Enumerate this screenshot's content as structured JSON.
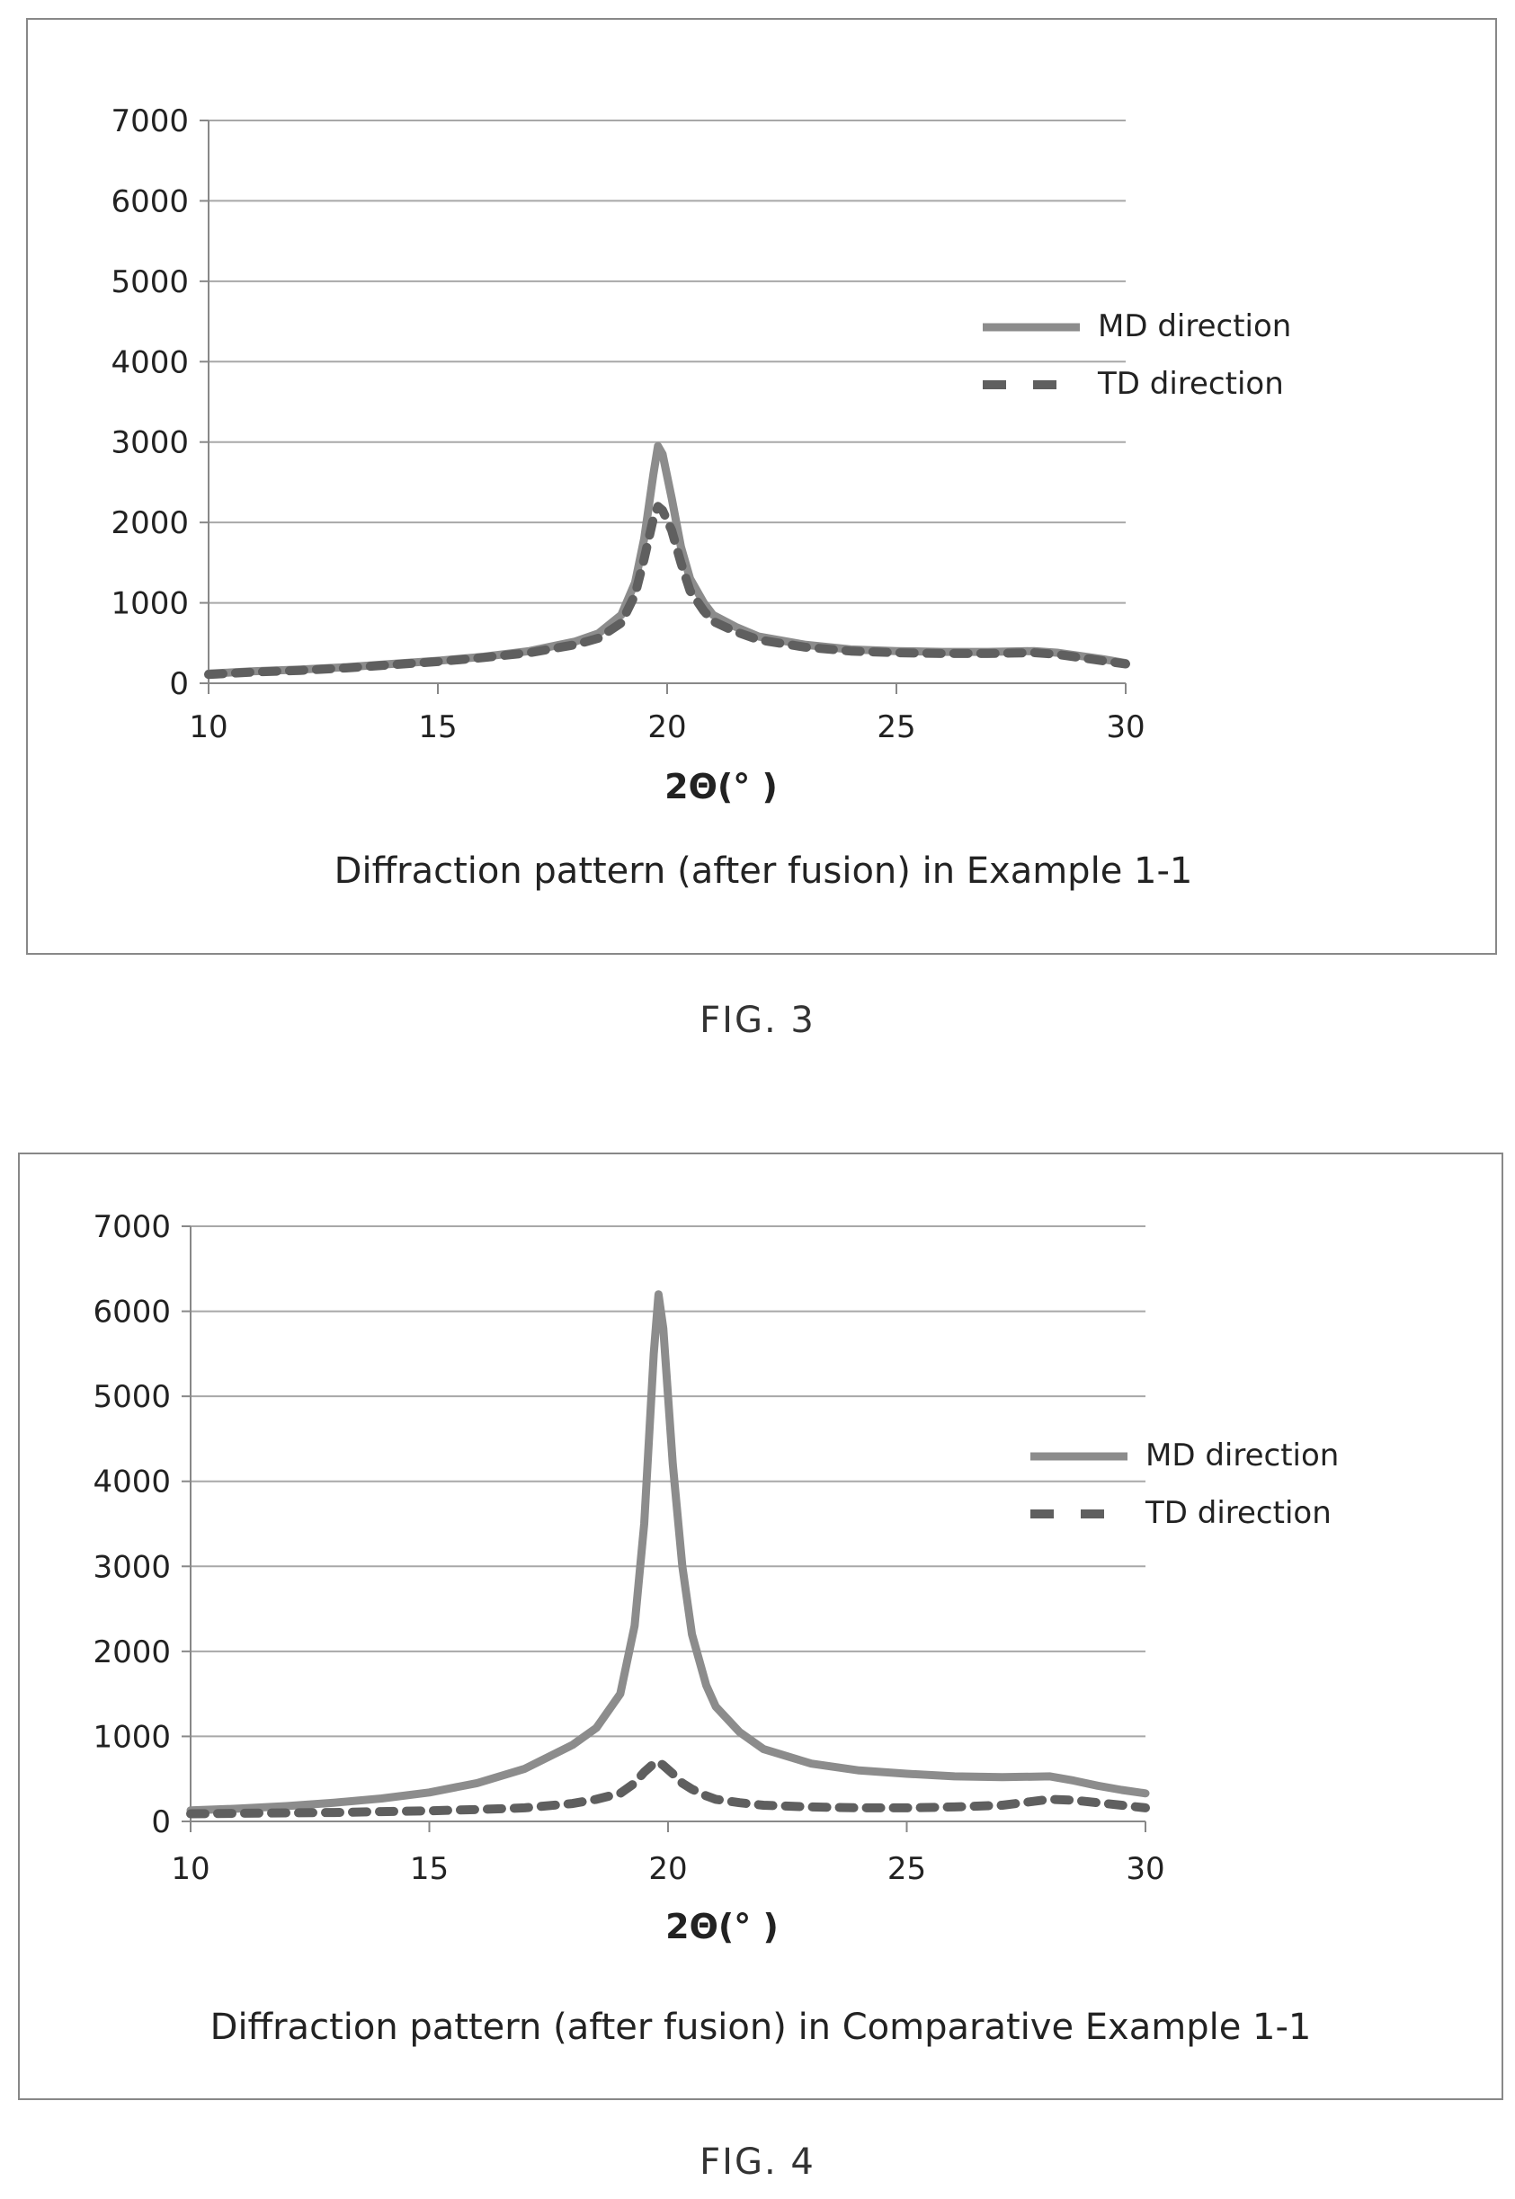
{
  "figures": [
    {
      "figure_label": "FIG. 3",
      "caption": "Diffraction pattern (after fusion) in Example 1-1"
    },
    {
      "figure_label": "FIG. 4",
      "caption": "Diffraction pattern (after fusion) in Comparative Example 1-1"
    }
  ],
  "colors": {
    "md": "#8c8c8c",
    "td": "#5f5f5f",
    "grid": "#a8a8a8",
    "axis": "#888888"
  },
  "chart_data": [
    {
      "type": "line",
      "title": "Diffraction pattern (after fusion) in Example 1-1",
      "xlabel": "2Θ(°  )",
      "ylabel": "",
      "xlim": [
        10,
        30
      ],
      "ylim": [
        0,
        7000
      ],
      "xticks": [
        10,
        15,
        20,
        25,
        30
      ],
      "yticks": [
        0,
        1000,
        2000,
        3000,
        4000,
        5000,
        6000,
        7000
      ],
      "grid": "horizontal",
      "legend": "right",
      "series": [
        {
          "name": "MD direction",
          "style": "solid",
          "x": [
            10,
            11,
            12,
            13,
            14,
            15,
            16,
            17,
            18,
            18.5,
            19,
            19.3,
            19.5,
            19.7,
            19.8,
            19.9,
            20.1,
            20.3,
            20.5,
            20.8,
            21,
            21.5,
            22,
            23,
            24,
            25,
            26,
            27,
            28,
            28.5,
            29,
            29.5,
            30
          ],
          "y": [
            120,
            150,
            170,
            200,
            240,
            280,
            330,
            400,
            520,
            620,
            850,
            1250,
            1800,
            2600,
            2950,
            2850,
            2300,
            1700,
            1300,
            1000,
            850,
            700,
            580,
            480,
            420,
            400,
            390,
            390,
            400,
            380,
            340,
            300,
            250
          ]
        },
        {
          "name": "TD direction",
          "style": "dashed",
          "x": [
            10,
            11,
            12,
            13,
            14,
            15,
            16,
            17,
            18,
            18.5,
            19,
            19.3,
            19.5,
            19.7,
            19.8,
            19.9,
            20.1,
            20.3,
            20.5,
            20.8,
            21,
            21.5,
            22,
            23,
            24,
            25,
            26,
            27,
            28,
            28.5,
            29,
            29.5,
            30
          ],
          "y": [
            110,
            140,
            160,
            190,
            230,
            270,
            320,
            380,
            480,
            560,
            750,
            1100,
            1550,
            2050,
            2200,
            2150,
            1900,
            1500,
            1150,
            900,
            770,
            640,
            540,
            450,
            400,
            380,
            370,
            370,
            380,
            360,
            320,
            280,
            240
          ]
        }
      ]
    },
    {
      "type": "line",
      "title": "Diffraction pattern (after fusion) in Comparative Example 1-1",
      "xlabel": "2Θ(°  )",
      "ylabel": "",
      "xlim": [
        10,
        30
      ],
      "ylim": [
        0,
        7000
      ],
      "xticks": [
        10,
        15,
        20,
        25,
        30
      ],
      "yticks": [
        0,
        1000,
        2000,
        3000,
        4000,
        5000,
        6000,
        7000
      ],
      "grid": "horizontal",
      "legend": "right",
      "series": [
        {
          "name": "MD direction",
          "style": "solid",
          "x": [
            10,
            11,
            12,
            13,
            14,
            15,
            16,
            17,
            18,
            18.5,
            19,
            19.3,
            19.5,
            19.7,
            19.8,
            19.9,
            20.1,
            20.3,
            20.5,
            20.8,
            21,
            21.5,
            22,
            23,
            24,
            25,
            26,
            27,
            28,
            28.5,
            29,
            29.5,
            30
          ],
          "y": [
            130,
            150,
            180,
            220,
            270,
            340,
            450,
            620,
            900,
            1100,
            1500,
            2300,
            3500,
            5500,
            6200,
            5800,
            4200,
            3000,
            2200,
            1600,
            1350,
            1050,
            850,
            680,
            600,
            560,
            530,
            520,
            530,
            480,
            420,
            370,
            330
          ]
        },
        {
          "name": "TD direction",
          "style": "dashed",
          "x": [
            10,
            11,
            12,
            13,
            14,
            15,
            16,
            17,
            18,
            18.5,
            19,
            19.3,
            19.5,
            19.7,
            19.8,
            19.9,
            20.1,
            20.3,
            20.5,
            20.8,
            21,
            21.5,
            22,
            23,
            24,
            25,
            26,
            27,
            28,
            28.5,
            29,
            29.5,
            30
          ],
          "y": [
            90,
            95,
            100,
            105,
            115,
            125,
            140,
            160,
            210,
            260,
            330,
            450,
            580,
            680,
            700,
            660,
            560,
            450,
            380,
            300,
            260,
            220,
            190,
            170,
            160,
            160,
            170,
            190,
            260,
            250,
            220,
            190,
            160
          ]
        }
      ]
    }
  ]
}
